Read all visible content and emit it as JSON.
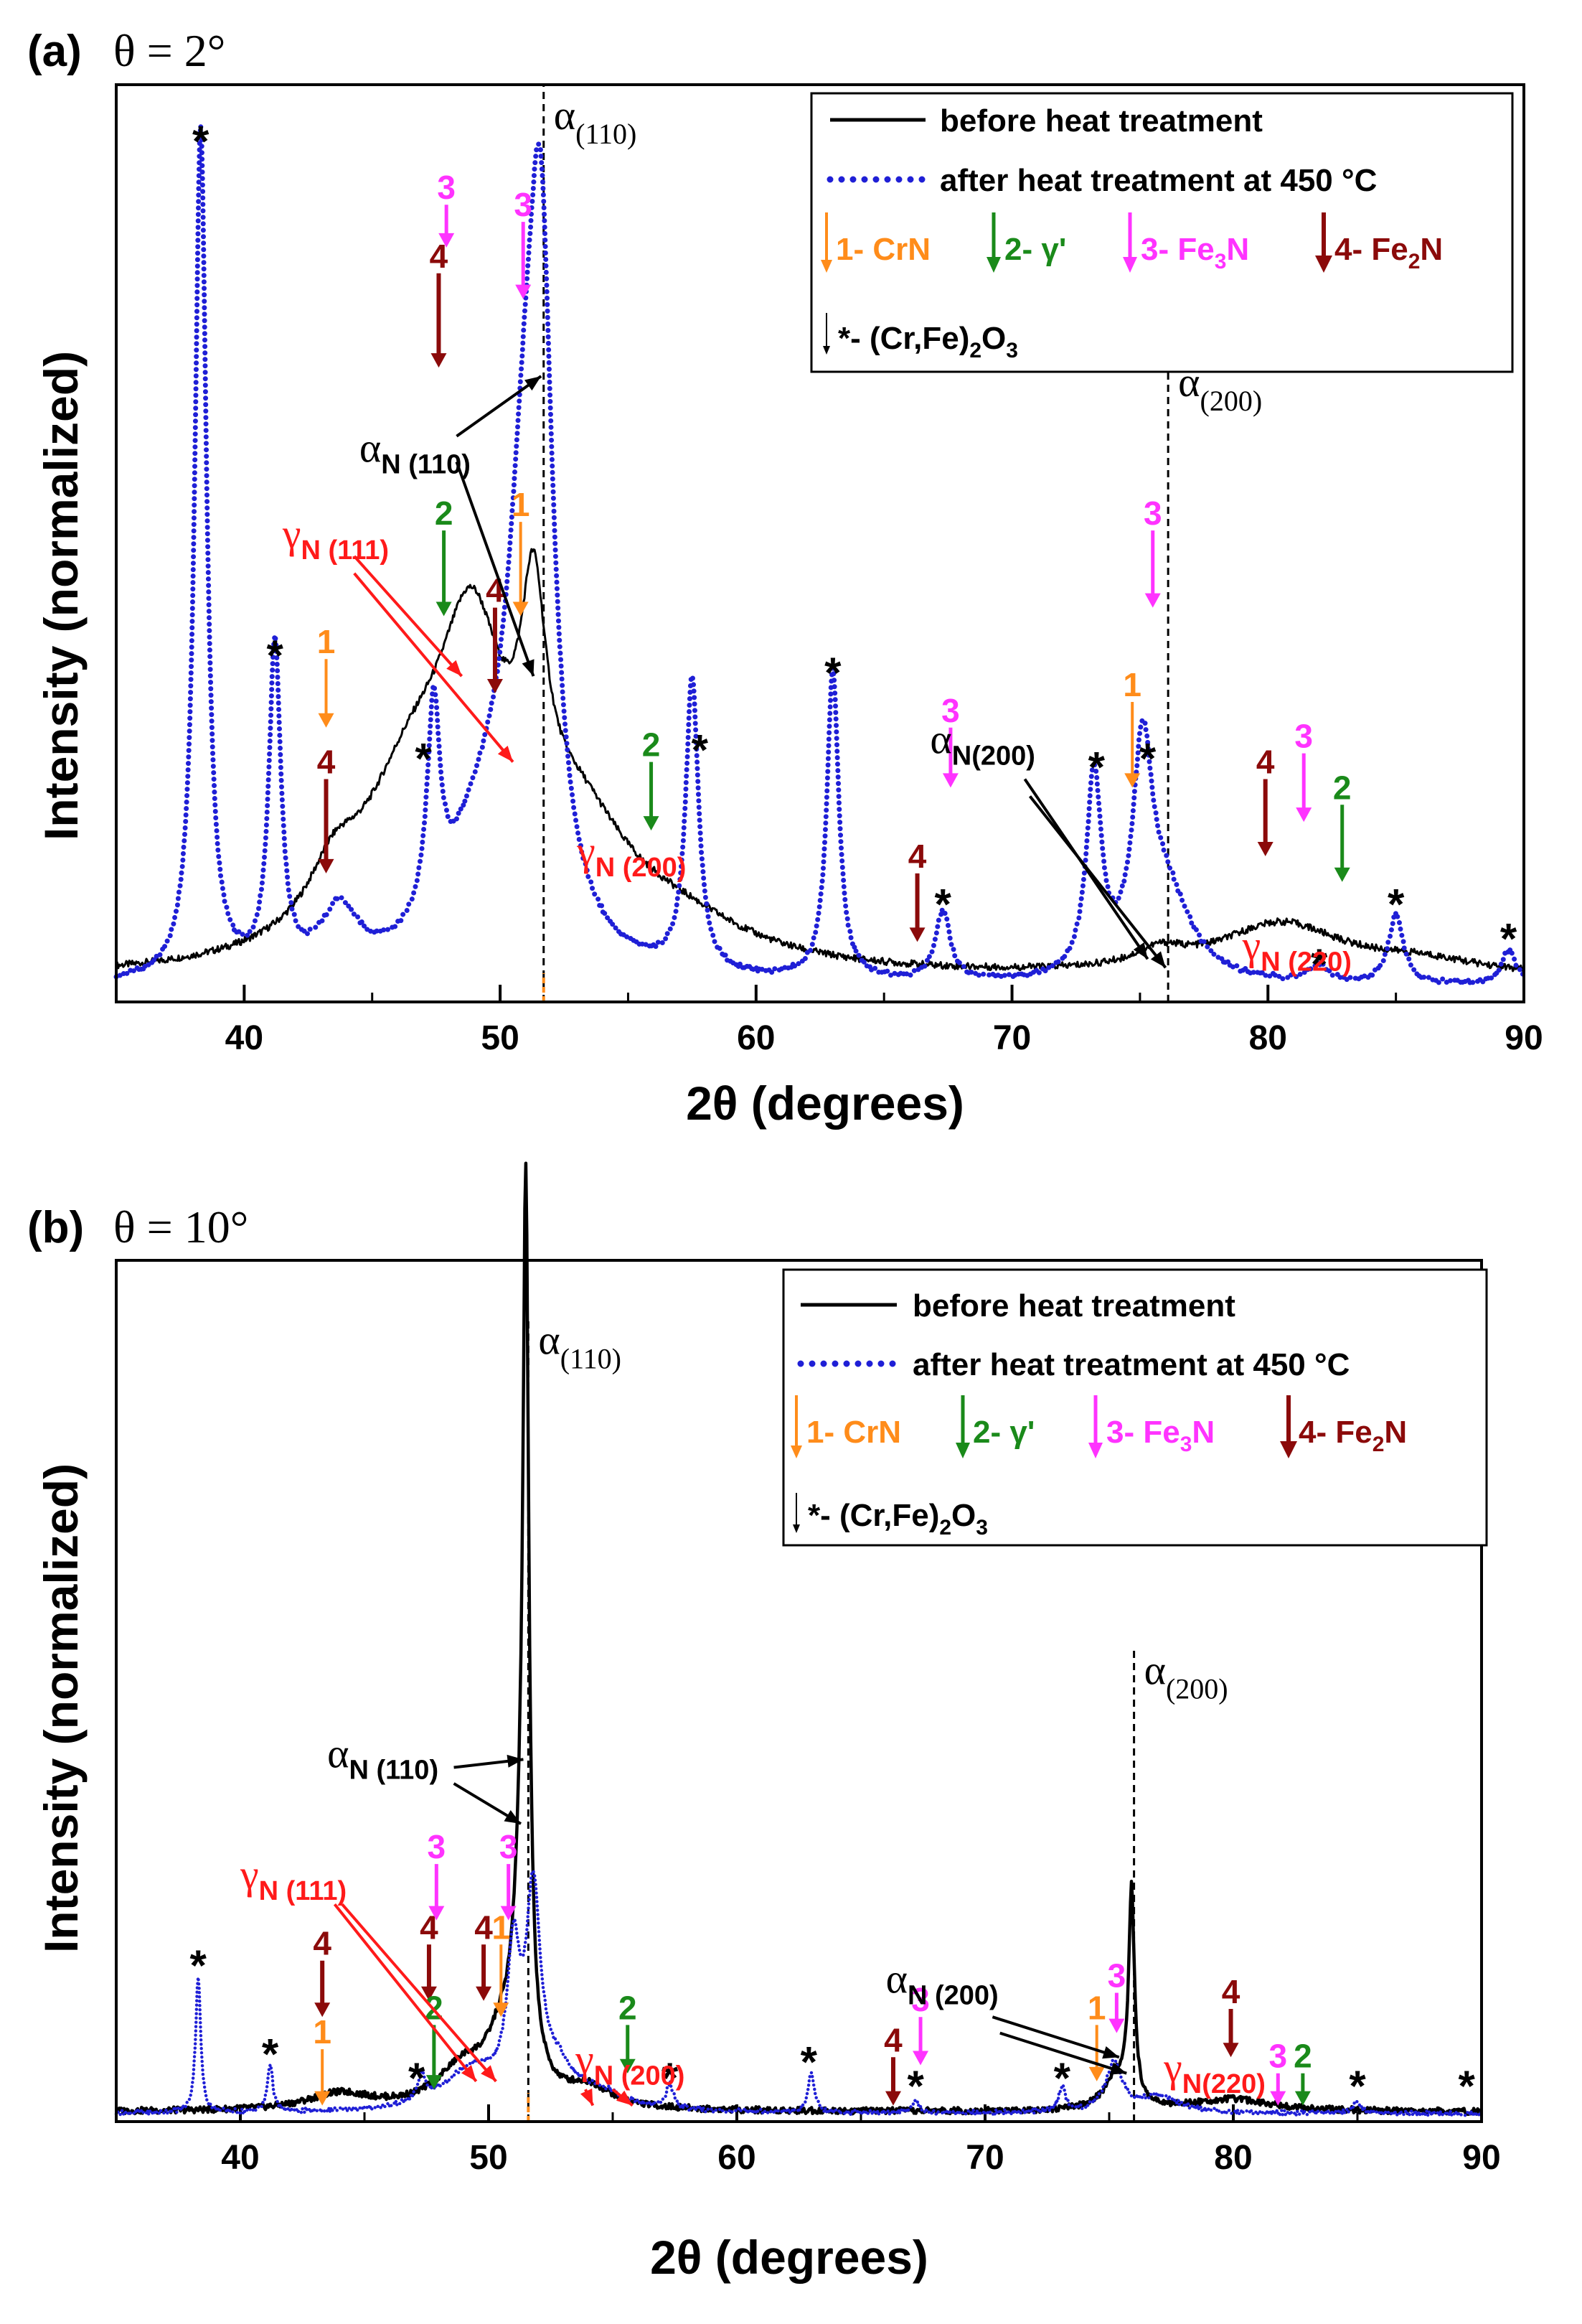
{
  "colors": {
    "before": "#000000",
    "after": "#1f1fd6",
    "crn": "#ff8c1a",
    "gamma_prime": "#1a8a1a",
    "fe3n": "#ff33ff",
    "fe2n": "#8b0a0a",
    "gamma_n": "#ff1a1a",
    "alpha_n": "#000000"
  },
  "chart_data": [
    {
      "id": "a",
      "type": "line",
      "panel_label": "(a)",
      "title": "θ = 2°",
      "xlabel": "2θ (degrees)",
      "ylabel": "Intensity (normalized)",
      "xlim": [
        35,
        90
      ],
      "ylim": [
        0,
        1.07
      ],
      "xticks": [
        40,
        50,
        60,
        70,
        80,
        90
      ],
      "legend": {
        "before": "before heat treatment",
        "after": "after heat treatment at 450 °C",
        "phase1": "1- CrN",
        "phase2": "2- γ'",
        "phase3": "3- Fe",
        "phase3_sub": "3",
        "phase3_tail": "N",
        "phase4": "4- Fe",
        "phase4_sub": "2",
        "phase4_tail": "N",
        "oxide": "*- (Cr,Fe)",
        "oxide_sub": "2",
        "oxide_tail": "O",
        "oxide_sub2": "3"
      },
      "series": [
        {
          "name": "before heat treatment",
          "style": "solid",
          "baseline": 0.025,
          "peaks": [
            {
              "x": 43.5,
              "h": 0.06,
              "w": 1.2
            },
            {
              "x": 46.5,
              "h": 0.18,
              "w": 2.5
            },
            {
              "x": 48.9,
              "h": 0.3,
              "w": 1.6
            },
            {
              "x": 51.3,
              "h": 0.26,
              "w": 0.6
            },
            {
              "x": 53.0,
              "h": 0.14,
              "w": 2.6
            },
            {
              "x": 57.0,
              "h": 0.04,
              "w": 3.5
            },
            {
              "x": 75.8,
              "h": 0.02,
              "w": 1.2
            },
            {
              "x": 80.5,
              "h": 0.06,
              "w": 3.0
            },
            {
              "x": 86.0,
              "h": 0.015,
              "w": 3.0
            }
          ]
        },
        {
          "name": "after heat treatment at 450 °C",
          "style": "dotted",
          "baseline": 0.018,
          "peaks": [
            {
              "x": 38.3,
              "h": 0.99,
              "w": 0.28
            },
            {
              "x": 41.2,
              "h": 0.38,
              "w": 0.28
            },
            {
              "x": 43.7,
              "h": 0.07,
              "w": 0.9
            },
            {
              "x": 47.4,
              "h": 0.24,
              "w": 0.3
            },
            {
              "x": 49.3,
              "h": 0.14,
              "w": 1.8
            },
            {
              "x": 51.0,
              "h": 0.45,
              "w": 0.9
            },
            {
              "x": 51.6,
              "h": 0.6,
              "w": 0.55
            },
            {
              "x": 57.5,
              "h": 0.34,
              "w": 0.3
            },
            {
              "x": 63.0,
              "h": 0.36,
              "w": 0.28
            },
            {
              "x": 67.3,
              "h": 0.08,
              "w": 0.35
            },
            {
              "x": 73.2,
              "h": 0.23,
              "w": 0.35
            },
            {
              "x": 75.1,
              "h": 0.24,
              "w": 0.45
            },
            {
              "x": 76.0,
              "h": 0.1,
              "w": 1.2
            },
            {
              "x": 82.0,
              "h": 0.02,
              "w": 0.4
            },
            {
              "x": 85.0,
              "h": 0.08,
              "w": 0.35
            },
            {
              "x": 89.4,
              "h": 0.04,
              "w": 0.35
            }
          ]
        }
      ],
      "reference_lines": [
        {
          "x": 51.7,
          "label": "α",
          "sub": "(110)",
          "ytop": 1.07
        },
        {
          "x": 76.1,
          "label": "α",
          "sub": "(200)",
          "ytop": 0.75
        }
      ],
      "orange_tick_x": 51.7,
      "markers": [
        {
          "phase": 1,
          "text": "1",
          "x": 43.2,
          "y1": 0.4,
          "y2": 0.32
        },
        {
          "phase": 4,
          "text": "4",
          "x": 43.2,
          "y1": 0.26,
          "y2": 0.15
        },
        {
          "phase": 4,
          "text": "4",
          "x": 47.6,
          "y1": 0.85,
          "y2": 0.74
        },
        {
          "phase": 3,
          "text": "3",
          "x": 47.9,
          "y1": 0.93,
          "y2": 0.88
        },
        {
          "phase": 2,
          "text": "2",
          "x": 47.8,
          "y1": 0.55,
          "y2": 0.45
        },
        {
          "phase": 4,
          "text": "4",
          "x": 49.8,
          "y1": 0.46,
          "y2": 0.36
        },
        {
          "phase": 3,
          "text": "3",
          "x": 50.9,
          "y1": 0.91,
          "y2": 0.82
        },
        {
          "phase": 1,
          "text": "1",
          "x": 50.8,
          "y1": 0.56,
          "y2": 0.45
        },
        {
          "phase": 2,
          "text": "2",
          "x": 55.9,
          "y1": 0.28,
          "y2": 0.2
        },
        {
          "phase": 4,
          "text": "4",
          "x": 66.3,
          "y1": 0.15,
          "y2": 0.07
        },
        {
          "phase": 3,
          "text": "3",
          "x": 67.6,
          "y1": 0.32,
          "y2": 0.25
        },
        {
          "phase": 1,
          "text": "1",
          "x": 74.7,
          "y1": 0.35,
          "y2": 0.25
        },
        {
          "phase": 3,
          "text": "3",
          "x": 75.5,
          "y1": 0.55,
          "y2": 0.46
        },
        {
          "phase": 4,
          "text": "4",
          "x": 79.9,
          "y1": 0.26,
          "y2": 0.17
        },
        {
          "phase": 3,
          "text": "3",
          "x": 81.4,
          "y1": 0.29,
          "y2": 0.21
        },
        {
          "phase": 2,
          "text": "2",
          "x": 82.9,
          "y1": 0.23,
          "y2": 0.14
        }
      ],
      "stars": [
        {
          "x": 38.3,
          "y": 1.0
        },
        {
          "x": 41.2,
          "y": 0.4
        },
        {
          "x": 47.0,
          "y": 0.28
        },
        {
          "x": 57.8,
          "y": 0.29
        },
        {
          "x": 63.0,
          "y": 0.38
        },
        {
          "x": 67.3,
          "y": 0.11
        },
        {
          "x": 73.3,
          "y": 0.27
        },
        {
          "x": 75.3,
          "y": 0.28
        },
        {
          "x": 82.0,
          "y": 0.04
        },
        {
          "x": 85.0,
          "y": 0.11
        },
        {
          "x": 89.4,
          "y": 0.07
        }
      ],
      "annotations": [
        {
          "kind": "alpha",
          "main": "α",
          "sub": "N (110)",
          "x": 44.5,
          "y": 0.63,
          "arrows": [
            [
              48.3,
              0.66,
              51.6,
              0.73
            ],
            [
              48.3,
              0.63,
              51.3,
              0.38
            ]
          ]
        },
        {
          "kind": "gamma",
          "main": "γ",
          "sub": "N (111)",
          "x": 41.5,
          "y": 0.53,
          "arrows": [
            [
              44.3,
              0.52,
              48.5,
              0.38
            ],
            [
              44.3,
              0.5,
              50.5,
              0.28
            ]
          ]
        },
        {
          "kind": "gamma",
          "main": "γ",
          "sub": "N (200)",
          "x": 53.0,
          "y": 0.16,
          "arrows": []
        },
        {
          "kind": "alpha",
          "main": "α",
          "sub": "N(200)",
          "x": 66.8,
          "y": 0.29,
          "arrows": [
            [
              70.5,
              0.26,
              75.3,
              0.05
            ],
            [
              70.7,
              0.24,
              76.0,
              0.04
            ]
          ]
        },
        {
          "kind": "gamma",
          "main": "γ",
          "sub": "N (220)",
          "x": 79.0,
          "y": 0.05,
          "arrows": []
        }
      ]
    },
    {
      "id": "b",
      "type": "line",
      "panel_label": "(b)",
      "title": "θ = 10°",
      "xlabel": "2θ (degrees)",
      "ylabel": "Intensity (normalized)",
      "xlim": [
        35,
        90
      ],
      "ylim": [
        0,
        1.07
      ],
      "xticks": [
        40,
        50,
        60,
        70,
        80,
        90
      ],
      "legend": {
        "before": "before heat treatment",
        "after": "after heat treatment at 450 °C",
        "phase1": "1- CrN",
        "phase2": "2- γ'",
        "phase3": "3- Fe",
        "phase3_sub": "3",
        "phase3_tail": "N",
        "phase4": "4- Fe",
        "phase4_sub": "2",
        "phase4_tail": "N",
        "oxide": "*- (Cr,Fe)",
        "oxide_sub": "2",
        "oxide_tail": "O",
        "oxide_sub2": "3"
      },
      "series": [
        {
          "name": "before heat treatment",
          "style": "solid",
          "baseline": 0.012,
          "peaks": [
            {
              "x": 44.0,
              "h": 0.02,
              "w": 1.6
            },
            {
              "x": 49.0,
              "h": 0.05,
              "w": 1.3
            },
            {
              "x": 50.5,
              "h": 0.06,
              "w": 0.7
            },
            {
              "x": 51.5,
              "h": 0.98,
              "w": 0.14
            },
            {
              "x": 51.3,
              "h": 0.2,
              "w": 0.4
            },
            {
              "x": 54.0,
              "h": 0.025,
              "w": 1.2
            },
            {
              "x": 75.3,
              "h": 0.04,
              "w": 0.6
            },
            {
              "x": 75.9,
              "h": 0.26,
              "w": 0.14
            },
            {
              "x": 80.0,
              "h": 0.015,
              "w": 2.0
            }
          ]
        },
        {
          "name": "after heat treatment at 450 °C",
          "style": "dotted",
          "baseline": 0.01,
          "peaks": [
            {
              "x": 38.3,
              "h": 0.17,
              "w": 0.12
            },
            {
              "x": 41.2,
              "h": 0.06,
              "w": 0.13
            },
            {
              "x": 47.3,
              "h": 0.03,
              "w": 0.2
            },
            {
              "x": 49.3,
              "h": 0.05,
              "w": 1.4
            },
            {
              "x": 51.0,
              "h": 0.17,
              "w": 0.3
            },
            {
              "x": 51.8,
              "h": 0.25,
              "w": 0.35
            },
            {
              "x": 52.8,
              "h": 0.04,
              "w": 0.8
            },
            {
              "x": 54.5,
              "h": 0.02,
              "w": 1.2
            },
            {
              "x": 57.3,
              "h": 0.03,
              "w": 0.18
            },
            {
              "x": 63.0,
              "h": 0.05,
              "w": 0.15
            },
            {
              "x": 67.2,
              "h": 0.015,
              "w": 0.15
            },
            {
              "x": 73.1,
              "h": 0.03,
              "w": 0.18
            },
            {
              "x": 75.2,
              "h": 0.06,
              "w": 0.4
            },
            {
              "x": 77.0,
              "h": 0.02,
              "w": 1.0
            },
            {
              "x": 85.0,
              "h": 0.015,
              "w": 0.18
            }
          ]
        }
      ],
      "reference_lines": [
        {
          "x": 51.6,
          "label": "α",
          "sub": "(110)",
          "ytop": 1.0
        },
        {
          "x": 76.0,
          "label": "α",
          "sub": "(200)",
          "ytop": 0.59
        }
      ],
      "orange_tick_x": 51.6,
      "markers": [
        {
          "phase": 4,
          "text": "4",
          "x": 43.3,
          "y1": 0.2,
          "y2": 0.13
        },
        {
          "phase": 1,
          "text": "1",
          "x": 43.3,
          "y1": 0.09,
          "y2": 0.02
        },
        {
          "phase": 4,
          "text": "4",
          "x": 47.6,
          "y1": 0.22,
          "y2": 0.15
        },
        {
          "phase": 3,
          "text": "3",
          "x": 47.9,
          "y1": 0.32,
          "y2": 0.25
        },
        {
          "phase": 2,
          "text": "2",
          "x": 47.8,
          "y1": 0.12,
          "y2": 0.04
        },
        {
          "phase": 4,
          "text": "4",
          "x": 49.8,
          "y1": 0.22,
          "y2": 0.15
        },
        {
          "phase": 3,
          "text": "3",
          "x": 50.8,
          "y1": 0.32,
          "y2": 0.25
        },
        {
          "phase": 1,
          "text": "1",
          "x": 50.5,
          "y1": 0.22,
          "y2": 0.13
        },
        {
          "phase": 2,
          "text": "2",
          "x": 55.6,
          "y1": 0.12,
          "y2": 0.06
        },
        {
          "phase": 4,
          "text": "4",
          "x": 66.3,
          "y1": 0.08,
          "y2": 0.02
        },
        {
          "phase": 3,
          "text": "3",
          "x": 67.4,
          "y1": 0.13,
          "y2": 0.07
        },
        {
          "phase": 1,
          "text": "1",
          "x": 74.5,
          "y1": 0.12,
          "y2": 0.05
        },
        {
          "phase": 3,
          "text": "3",
          "x": 75.3,
          "y1": 0.16,
          "y2": 0.11
        },
        {
          "phase": 4,
          "text": "4",
          "x": 79.9,
          "y1": 0.14,
          "y2": 0.08
        },
        {
          "phase": 3,
          "text": "3",
          "x": 81.8,
          "y1": 0.06,
          "y2": 0.02
        },
        {
          "phase": 2,
          "text": "2",
          "x": 82.8,
          "y1": 0.06,
          "y2": 0.02
        }
      ],
      "stars": [
        {
          "x": 38.3,
          "y": 0.19
        },
        {
          "x": 41.2,
          "y": 0.08
        },
        {
          "x": 47.1,
          "y": 0.05
        },
        {
          "x": 57.3,
          "y": 0.05
        },
        {
          "x": 62.9,
          "y": 0.07
        },
        {
          "x": 67.2,
          "y": 0.04
        },
        {
          "x": 73.1,
          "y": 0.05
        },
        {
          "x": 85.0,
          "y": 0.04
        },
        {
          "x": 89.4,
          "y": 0.04
        }
      ],
      "annotations": [
        {
          "kind": "alpha",
          "main": "α",
          "sub": "N (110)",
          "x": 43.5,
          "y": 0.44,
          "arrows": [
            [
              48.6,
              0.44,
              51.4,
              0.45
            ],
            [
              48.6,
              0.42,
              51.3,
              0.37
            ]
          ]
        },
        {
          "kind": "gamma",
          "main": "γ",
          "sub": "N (111)",
          "x": 40.0,
          "y": 0.29,
          "arrows": [
            [
              43.8,
              0.27,
              49.5,
              0.05
            ],
            [
              44.1,
              0.27,
              50.3,
              0.05
            ]
          ]
        },
        {
          "kind": "gamma",
          "main": "γ",
          "sub": "N (200)",
          "x": 53.5,
          "y": 0.06,
          "arrows": [
            [
              53.9,
              0.04,
              54.2,
              0.02
            ],
            [
              55.0,
              0.04,
              55.8,
              0.02
            ]
          ]
        },
        {
          "kind": "alpha",
          "main": "α",
          "sub": "N (200)",
          "x": 66.0,
          "y": 0.16,
          "arrows": [
            [
              70.3,
              0.13,
              75.4,
              0.08
            ],
            [
              70.6,
              0.11,
              75.7,
              0.06
            ]
          ]
        },
        {
          "kind": "gamma",
          "main": "γ",
          "sub": "N(220)",
          "x": 77.2,
          "y": 0.05,
          "arrows": []
        }
      ]
    }
  ]
}
